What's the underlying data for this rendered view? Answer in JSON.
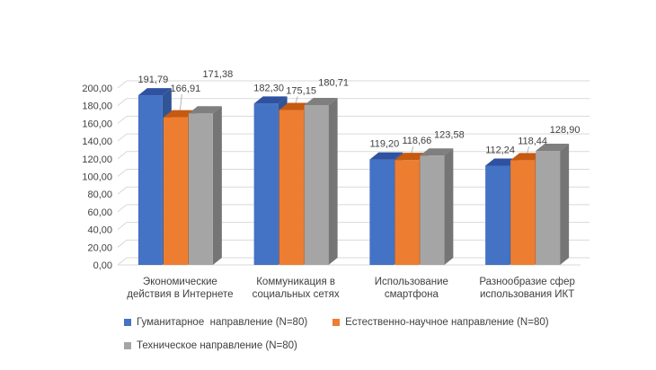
{
  "chart_data": {
    "type": "bar",
    "style": "3d-clustered-column",
    "categories": [
      [
        "Экономические",
        "действия в Интернете"
      ],
      [
        "Коммуникация в",
        "социальных сетях"
      ],
      [
        "Использование",
        "смартфона"
      ],
      [
        "Разнообразие сфер",
        "использования ИКТ"
      ]
    ],
    "series": [
      {
        "name": "Гуманитарное  направление (N=80)",
        "values": [
          191.79,
          182.3,
          119.2,
          112.24
        ],
        "labels": [
          "191,79",
          "182,30",
          "119,20",
          "112,24"
        ],
        "color": "#4472C4",
        "top": "#2F52A0",
        "side": "#2F5597"
      },
      {
        "name": "Естественно-научное направление (N=80)",
        "values": [
          166.91,
          175.15,
          118.66,
          118.44
        ],
        "labels": [
          "166,91",
          "175,15",
          "118,66",
          "118,44"
        ],
        "color": "#ED7D31",
        "top": "#C55A11",
        "side": "#B85C1E"
      },
      {
        "name": "Техническое направление (N=80)",
        "values": [
          171.38,
          180.71,
          123.58,
          128.9
        ],
        "labels": [
          "171,38",
          "180,71",
          "123,58",
          "128,90"
        ],
        "color": "#A5A5A5",
        "top": "#7F7F7F",
        "side": "#757575"
      }
    ],
    "y_ticks": [
      "0,00",
      "20,00",
      "40,00",
      "60,00",
      "80,00",
      "100,00",
      "120,00",
      "140,00",
      "160,00",
      "180,00",
      "200,00"
    ],
    "ylim": [
      0,
      200
    ],
    "grid": true,
    "legend_position": "bottom",
    "title": "",
    "xlabel": "",
    "ylabel": ""
  }
}
